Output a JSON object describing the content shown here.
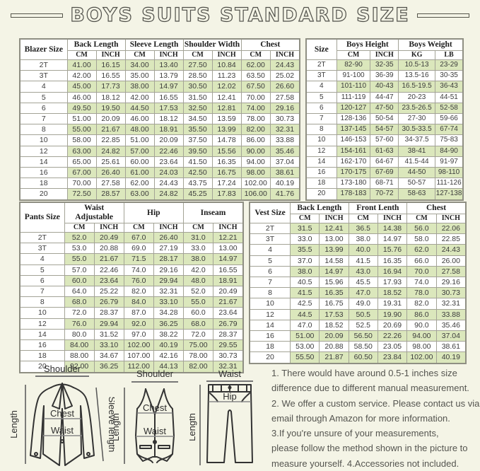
{
  "title": "BOYS SUITS STANDARD SIZE",
  "tables": {
    "blazer": {
      "size_header": "Blazer Size",
      "groups": [
        {
          "label": "Back Length",
          "units": [
            "CM",
            "INCH"
          ]
        },
        {
          "label": "Sleeve Length",
          "units": [
            "CM",
            "INCH"
          ]
        },
        {
          "label": "Shoulder Width",
          "units": [
            "CM",
            "INCH"
          ]
        },
        {
          "label": "Chest",
          "units": [
            "CM",
            "INCH"
          ]
        }
      ],
      "rows": [
        [
          "2T",
          "41.00",
          "16.15",
          "34.00",
          "13.40",
          "27.50",
          "10.84",
          "62.00",
          "24.43"
        ],
        [
          "3T",
          "42.00",
          "16.55",
          "35.00",
          "13.79",
          "28.50",
          "11.23",
          "63.50",
          "25.02"
        ],
        [
          "4",
          "45.00",
          "17.73",
          "38.00",
          "14.97",
          "30.50",
          "12.02",
          "67.50",
          "26.60"
        ],
        [
          "5",
          "46.00",
          "18.12",
          "42.00",
          "16.55",
          "31.50",
          "12.41",
          "70.00",
          "27.58"
        ],
        [
          "6",
          "49.50",
          "19.50",
          "44.50",
          "17.53",
          "32.50",
          "12.81",
          "74.00",
          "29.16"
        ],
        [
          "7",
          "51.00",
          "20.09",
          "46.00",
          "18.12",
          "34.50",
          "13.59",
          "78.00",
          "30.73"
        ],
        [
          "8",
          "55.00",
          "21.67",
          "48.00",
          "18.91",
          "35.50",
          "13.99",
          "82.00",
          "32.31"
        ],
        [
          "10",
          "58.00",
          "22.85",
          "51.00",
          "20.09",
          "37.50",
          "14.78",
          "86.00",
          "33.88"
        ],
        [
          "12",
          "63.00",
          "24.82",
          "57.00",
          "22.46",
          "39.50",
          "15.56",
          "90.00",
          "35.46"
        ],
        [
          "14",
          "65.00",
          "25.61",
          "60.00",
          "23.64",
          "41.50",
          "16.35",
          "94.00",
          "37.04"
        ],
        [
          "16",
          "67.00",
          "26.40",
          "61.00",
          "24.03",
          "42.50",
          "16.75",
          "98.00",
          "38.61"
        ],
        [
          "18",
          "70.00",
          "27.58",
          "62.00",
          "24.43",
          "43.75",
          "17.24",
          "102.00",
          "40.19"
        ],
        [
          "20",
          "72.50",
          "28.57",
          "63.00",
          "24.82",
          "45.25",
          "17.83",
          "106.00",
          "41.76"
        ]
      ]
    },
    "body": {
      "size_header": "Size",
      "groups": [
        {
          "label": "Boys Height",
          "units": [
            "CM",
            "INCH"
          ]
        },
        {
          "label": "Boys Weight",
          "units": [
            "KG",
            "LB"
          ]
        }
      ],
      "rows": [
        [
          "2T",
          "82-90",
          "32-35",
          "10.5-13",
          "23-29"
        ],
        [
          "3T",
          "91-100",
          "36-39",
          "13.5-16",
          "30-35"
        ],
        [
          "4",
          "101-110",
          "40-43",
          "16.5-19.5",
          "36-43"
        ],
        [
          "5",
          "111-119",
          "44-47",
          "20-23",
          "44-51"
        ],
        [
          "6",
          "120-127",
          "47-50",
          "23.5-26.5",
          "52-58"
        ],
        [
          "7",
          "128-136",
          "50-54",
          "27-30",
          "59-66"
        ],
        [
          "8",
          "137-145",
          "54-57",
          "30.5-33.5",
          "67-74"
        ],
        [
          "10",
          "146-153",
          "57-60",
          "34-37.5",
          "75-83"
        ],
        [
          "12",
          "154-161",
          "61-63",
          "38-41",
          "84-90"
        ],
        [
          "14",
          "162-170",
          "64-67",
          "41.5-44",
          "91-97"
        ],
        [
          "16",
          "170-175",
          "67-69",
          "44-50",
          "98-110"
        ],
        [
          "18",
          "173-180",
          "68-71",
          "50-57",
          "111-126"
        ],
        [
          "20",
          "178-183",
          "70-72",
          "58-63",
          "127-138"
        ]
      ]
    },
    "pants": {
      "size_header": "Pants Size",
      "groups": [
        {
          "label": "Waist Adjustable",
          "units": [
            "CM",
            "INCH"
          ]
        },
        {
          "label": "Hip",
          "units": [
            "CM",
            "INCH"
          ]
        },
        {
          "label": "Inseam",
          "units": [
            "CM",
            "INCH"
          ]
        }
      ],
      "rows": [
        [
          "2T",
          "52.0",
          "20.49",
          "67.0",
          "26.40",
          "31.0",
          "12.21"
        ],
        [
          "3T",
          "53.0",
          "20.88",
          "69.0",
          "27.19",
          "33.0",
          "13.00"
        ],
        [
          "4",
          "55.0",
          "21.67",
          "71.5",
          "28.17",
          "38.0",
          "14.97"
        ],
        [
          "5",
          "57.0",
          "22.46",
          "74.0",
          "29.16",
          "42.0",
          "16.55"
        ],
        [
          "6",
          "60.0",
          "23.64",
          "76.0",
          "29.94",
          "48.0",
          "18.91"
        ],
        [
          "7",
          "64.0",
          "25.22",
          "82.0",
          "32.31",
          "52.0",
          "20.49"
        ],
        [
          "8",
          "68.0",
          "26.79",
          "84.0",
          "33.10",
          "55.0",
          "21.67"
        ],
        [
          "10",
          "72.0",
          "28.37",
          "87.0",
          "34.28",
          "60.0",
          "23.64"
        ],
        [
          "12",
          "76.0",
          "29.94",
          "92.0",
          "36.25",
          "68.0",
          "26.79"
        ],
        [
          "14",
          "80.0",
          "31.52",
          "97.0",
          "38.22",
          "72.0",
          "28.37"
        ],
        [
          "16",
          "84.00",
          "33.10",
          "102.00",
          "40.19",
          "75.00",
          "29.55"
        ],
        [
          "18",
          "88.00",
          "34.67",
          "107.00",
          "42.16",
          "78.00",
          "30.73"
        ],
        [
          "20",
          "92.00",
          "36.25",
          "112.00",
          "44.13",
          "82.00",
          "32.31"
        ]
      ]
    },
    "vest": {
      "size_header": "Vest Size",
      "groups": [
        {
          "label": "Back Length",
          "units": [
            "CM",
            "INCH"
          ]
        },
        {
          "label": "Front Lenth",
          "units": [
            "CM",
            "INCH"
          ]
        },
        {
          "label": "Chest",
          "units": [
            "CM",
            "INCH"
          ]
        }
      ],
      "rows": [
        [
          "2T",
          "31.5",
          "12.41",
          "36.5",
          "14.38",
          "56.0",
          "22.06"
        ],
        [
          "3T",
          "33.0",
          "13.00",
          "38.0",
          "14.97",
          "58.0",
          "22.85"
        ],
        [
          "4",
          "35.5",
          "13.99",
          "40.0",
          "15.76",
          "62.0",
          "24.43"
        ],
        [
          "5",
          "37.0",
          "14.58",
          "41.5",
          "16.35",
          "66.0",
          "26.00"
        ],
        [
          "6",
          "38.0",
          "14.97",
          "43.0",
          "16.94",
          "70.0",
          "27.58"
        ],
        [
          "7",
          "40.5",
          "15.96",
          "45.5",
          "17.93",
          "74.0",
          "29.16"
        ],
        [
          "8",
          "41.5",
          "16.35",
          "47.0",
          "18.52",
          "78.0",
          "30.73"
        ],
        [
          "10",
          "42.5",
          "16.75",
          "49.0",
          "19.31",
          "82.0",
          "32.31"
        ],
        [
          "12",
          "44.5",
          "17.53",
          "50.5",
          "19.90",
          "86.0",
          "33.88"
        ],
        [
          "14",
          "47.0",
          "18.52",
          "52.5",
          "20.69",
          "90.0",
          "35.46"
        ],
        [
          "16",
          "51.00",
          "20.09",
          "56.50",
          "22.26",
          "94.00",
          "37.04"
        ],
        [
          "18",
          "53.00",
          "20.88",
          "58.50",
          "23.05",
          "98.00",
          "38.61"
        ],
        [
          "20",
          "55.50",
          "21.87",
          "60.50",
          "23.84",
          "102.00",
          "40.19"
        ]
      ]
    }
  },
  "diagrams": {
    "blazer": {
      "shoulder": "Shoulder",
      "length": "Length",
      "sleeve_length": "Sleeve length",
      "chest": "Chest",
      "waist": "Waist"
    },
    "vest": {
      "shoulder": "Shoulder",
      "length": "Length",
      "chest": "Chest",
      "waist": "Waist"
    },
    "pants": {
      "waist": "Waist",
      "hip": "Hip",
      "length": "Length"
    }
  },
  "notes": {
    "lines": [
      "1. There would have around 0.5-1 inches size",
      "difference due to different manual measurement.",
      "2. We offer a custom service. Please contact us via",
      "email through Amazon for more information.",
      "3.If you're unsure of your measurements,",
      "please follow the method shown in the picture to",
      "measure yourself. 4.Accessories not included."
    ]
  },
  "colors": {
    "background": "#f4f4e6",
    "row_green": "#dbe7bc",
    "border": "#8f8f83"
  }
}
